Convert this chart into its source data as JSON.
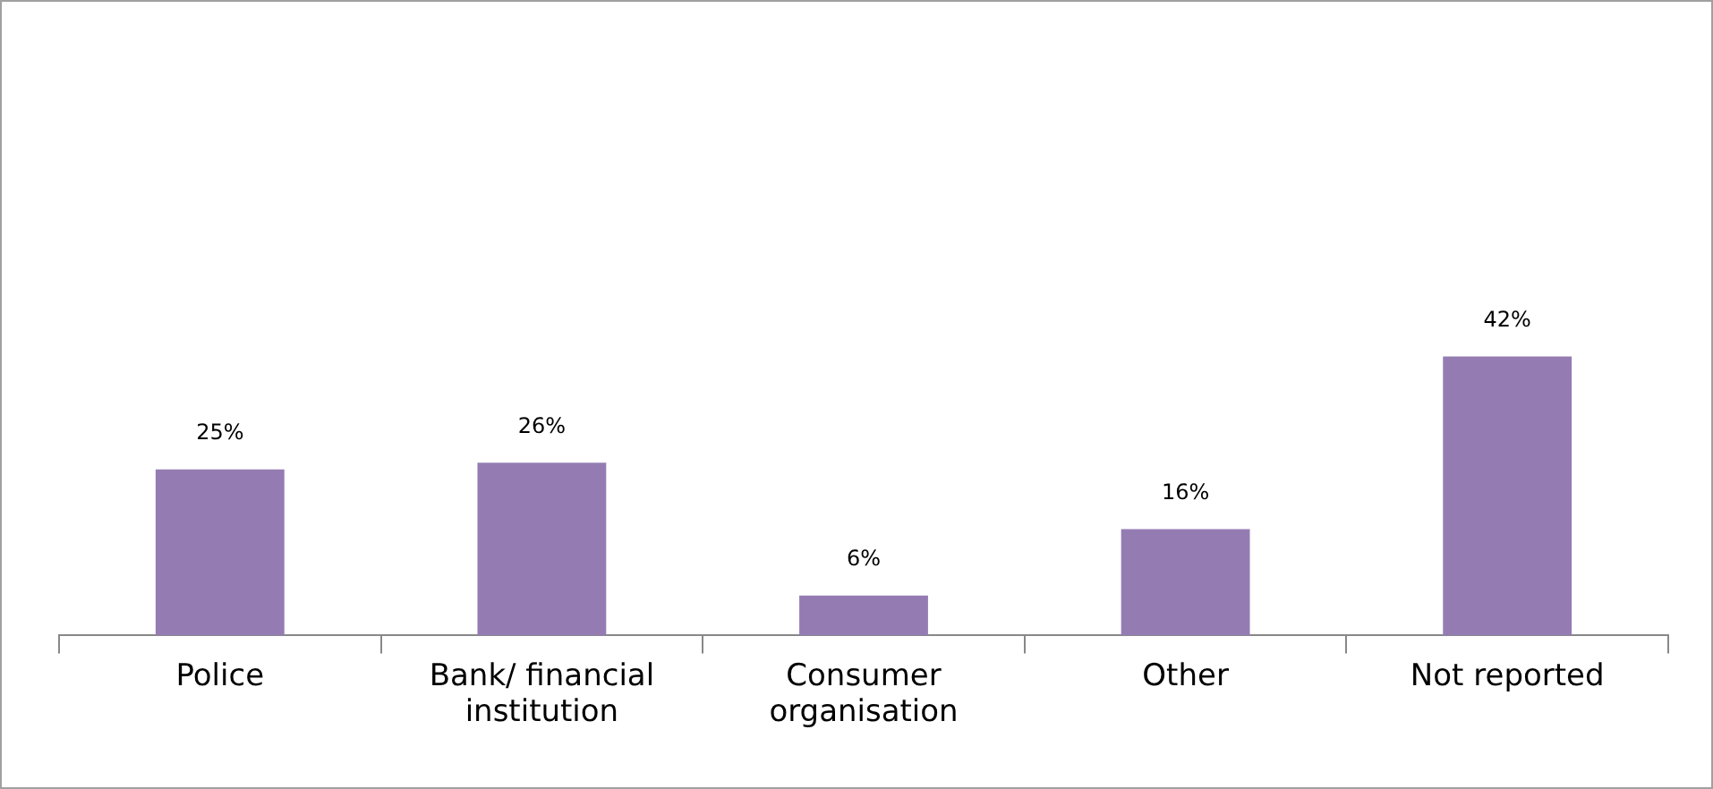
{
  "chart_data": {
    "type": "bar",
    "categories": [
      "Police",
      "Bank/ financial institution",
      "Consumer organisation",
      "Other",
      "Not reported"
    ],
    "values": [
      25,
      26,
      6,
      16,
      42
    ],
    "value_labels": [
      "25%",
      "26%",
      "6%",
      "16%",
      "42%"
    ],
    "color": "#947cb3"
  }
}
